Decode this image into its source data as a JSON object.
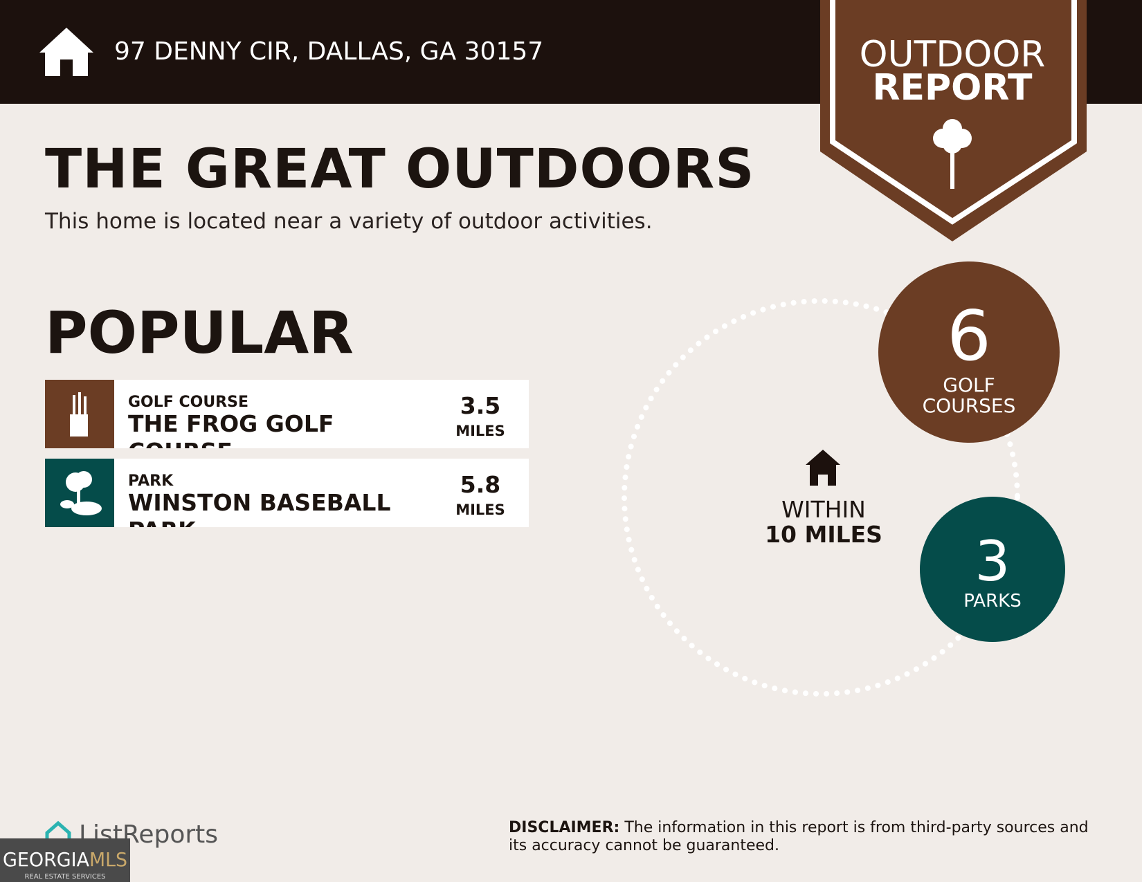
{
  "header": {
    "address": "97 DENNY CIR, DALLAS, GA 30157"
  },
  "badge": {
    "line1": "OUTDOOR",
    "line2": "REPORT"
  },
  "title": "THE GREAT OUTDOORS",
  "subtitle": "This home is located near a variety of outdoor activities.",
  "popular": {
    "heading": "POPULAR",
    "items": [
      {
        "category": "GOLF COURSE",
        "name": "THE FROG GOLF COURSE",
        "distance": 3.5,
        "unit": "MILES"
      },
      {
        "category": "PARK",
        "name": "WINSTON BASEBALL PARK",
        "distance": 5.8,
        "unit": "MILES"
      }
    ]
  },
  "summary": {
    "within": "WITHIN",
    "radius": "10 MILES",
    "counts": [
      {
        "count": 6,
        "label": "GOLF COURSES"
      },
      {
        "count": 3,
        "label": "PARKS"
      }
    ]
  },
  "footer": {
    "brand": "ListReports",
    "disclaimer_label": "DISCLAIMER:",
    "disclaimer": "The information in this report is from third-party sources and its accuracy cannot be guaranteed.",
    "mls_name": "GEORGIA",
    "mls_suffix": "MLS",
    "mls_tagline": "REAL ESTATE SERVICES"
  }
}
